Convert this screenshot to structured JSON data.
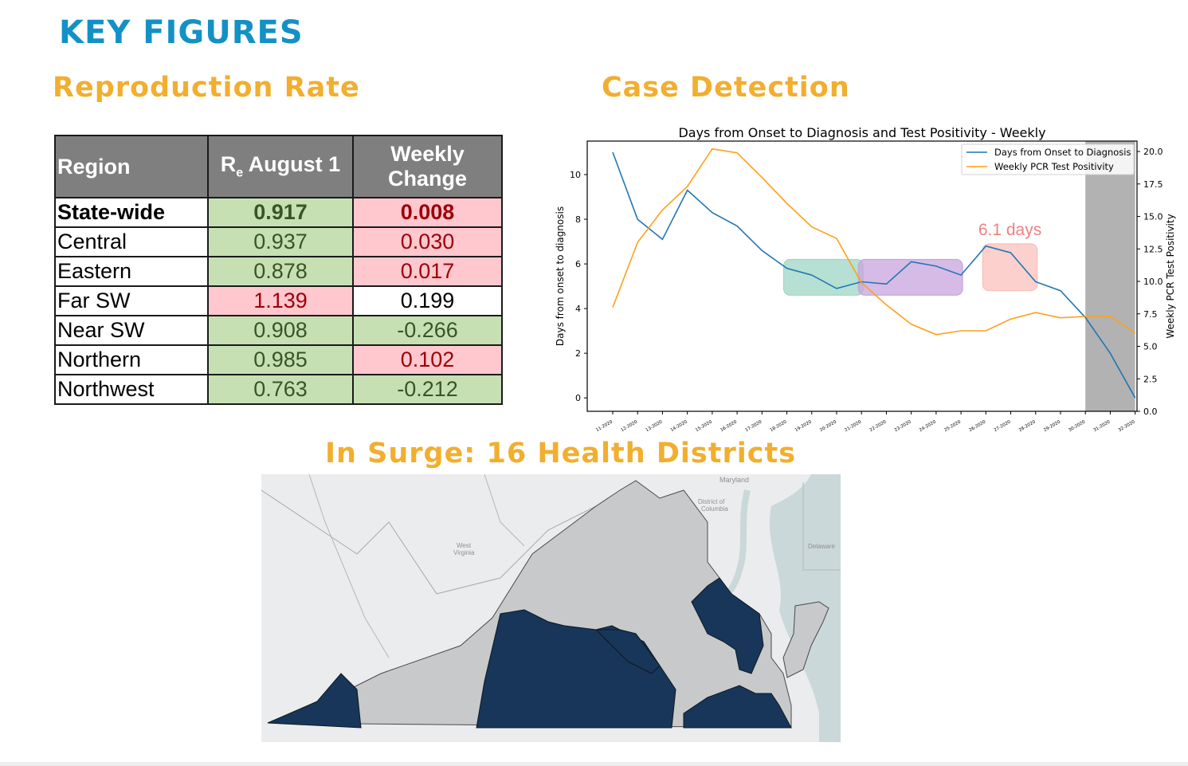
{
  "page": {
    "title": "KEY FIGURES",
    "reproduction_heading": "Reproduction Rate",
    "case_heading": "Case Detection",
    "surge_heading": "In Surge: 16 Health Districts"
  },
  "table": {
    "headers": {
      "region": "Region",
      "re_main": "R",
      "re_sub": "e",
      "re_rest": " August 1",
      "weekly_1": "Weekly",
      "weekly_2": "Change"
    },
    "rows": [
      {
        "region": "State-wide",
        "re": "0.917",
        "change": "0.008",
        "re_status": "green",
        "change_status": "pink",
        "bold": true
      },
      {
        "region": "Central",
        "re": "0.937",
        "change": "0.030",
        "re_status": "green",
        "change_status": "pink",
        "bold": false
      },
      {
        "region": "Eastern",
        "re": "0.878",
        "change": "0.017",
        "re_status": "green",
        "change_status": "pink",
        "bold": false
      },
      {
        "region": "Far SW",
        "re": "1.139",
        "change": "0.199",
        "re_status": "pink",
        "change_status": "white",
        "bold": false
      },
      {
        "region": "Near SW",
        "re": "0.908",
        "change": "-0.266",
        "re_status": "green",
        "change_status": "green",
        "bold": false
      },
      {
        "region": "Northern",
        "re": "0.985",
        "change": "0.102",
        "re_status": "green",
        "change_status": "pink",
        "bold": false
      },
      {
        "region": "Northwest",
        "re": "0.763",
        "change": "-0.212",
        "re_status": "green",
        "change_status": "green",
        "bold": false
      }
    ],
    "colors": {
      "green_bg": "#c6e0b4",
      "green_text": "#375623",
      "pink_bg": "#ffc7ce",
      "pink_text": "#9c0006",
      "header_bg": "#7f7f7f"
    }
  },
  "chart_data": {
    "type": "line",
    "title": "Days from Onset to Diagnosis and Test Positivity - Weekly",
    "ylabel": "Days from onset to diagnosis",
    "y2label": "Weekly PCR Test Positivity",
    "x": [
      "11-2020",
      "12-2020",
      "13-2020",
      "14-2020",
      "15-2020",
      "16-2020",
      "17-2020",
      "18-2020",
      "19-2020",
      "20-2020",
      "21-2020",
      "22-2020",
      "23-2020",
      "24-2020",
      "25-2020",
      "26-2020",
      "27-2020",
      "28-2020",
      "29-2020",
      "30-2020",
      "31-2020",
      "32-2020"
    ],
    "ylim": [
      -0.6,
      11.5
    ],
    "y2lim": [
      0,
      20.8
    ],
    "yticks": [
      "0",
      "2",
      "4",
      "6",
      "8",
      "10"
    ],
    "y2ticks": [
      "0.0",
      "2.5",
      "5.0",
      "7.5",
      "10.0",
      "12.5",
      "15.0",
      "17.5",
      "20.0"
    ],
    "series": [
      {
        "name": "Days from Onset to Diagnosis",
        "axis": "left",
        "color": "#1f77b4",
        "values": [
          11.0,
          8.0,
          7.1,
          9.3,
          8.3,
          7.7,
          6.6,
          5.8,
          5.5,
          4.9,
          5.2,
          5.1,
          6.1,
          5.9,
          5.5,
          6.8,
          6.5,
          5.2,
          4.8,
          3.6,
          2.0,
          0.0
        ]
      },
      {
        "name": "Weekly PCR Test Positivity",
        "axis": "right",
        "color": "#ff9f1a",
        "values": [
          8.0,
          13.0,
          15.5,
          17.3,
          20.2,
          19.9,
          18.0,
          16.0,
          14.2,
          13.3,
          9.9,
          8.2,
          6.7,
          5.9,
          6.2,
          6.2,
          7.1,
          7.6,
          7.2,
          7.3,
          7.3,
          6.0
        ]
      }
    ],
    "legend": "top-right",
    "grid": false,
    "shaded_region": {
      "from": "30-2020",
      "to": "32-2020",
      "color": "#b2b2b2"
    },
    "highlight_boxes": [
      {
        "from": "18-2020",
        "to": "21-2020",
        "y_low": 4.6,
        "y_high": 6.2,
        "color": "#9ed6c4",
        "label": ""
      },
      {
        "from": "21-2020",
        "to": "25-2020",
        "y_low": 4.6,
        "y_high": 6.2,
        "color": "#c8a4dd",
        "label": ""
      },
      {
        "from": "26-2020",
        "to": "28-2020",
        "y_low": 4.8,
        "y_high": 6.9,
        "color": "#f9c0bc",
        "label": "6.1 days"
      }
    ]
  },
  "map": {
    "labels": {
      "maryland": "Maryland",
      "dc_1": "District of",
      "dc_2": "Columbia",
      "wv_1": "West",
      "wv_2": "Virginia",
      "delaware": "Delaware"
    },
    "colors": {
      "surge": "#173659",
      "normal": "#c8c9cb",
      "land": "#ebeced",
      "water": "#cad8d9",
      "border": "#4a4a4a"
    }
  }
}
